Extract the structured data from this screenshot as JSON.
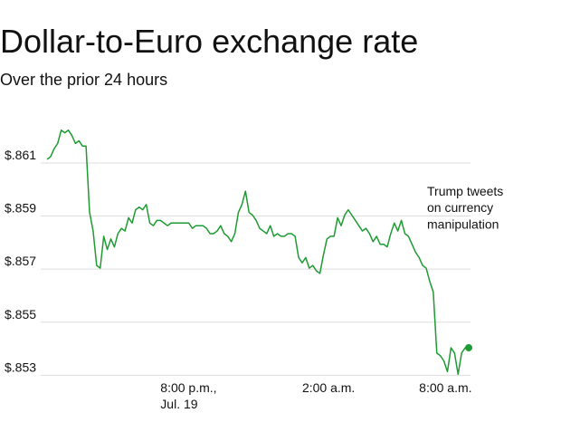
{
  "chart_data": {
    "type": "line",
    "title": "Dollar-to-Euro exchange rate",
    "subtitle": "Over the prior 24 hours",
    "annotation": "Trump tweets\non currency\nmanipulation",
    "series": [
      {
        "name": "Dollar-to-Euro",
        "color": "#1e9b32",
        "values": [
          0.861,
          0.8611,
          0.8614,
          0.8616,
          0.8621,
          0.862,
          0.8621,
          0.8619,
          0.8616,
          0.8617,
          0.8615,
          0.8615,
          0.859,
          0.8583,
          0.857,
          0.8569,
          0.8581,
          0.8576,
          0.858,
          0.8577,
          0.8582,
          0.8584,
          0.8583,
          0.8588,
          0.8586,
          0.8591,
          0.8592,
          0.8591,
          0.8593,
          0.8586,
          0.8585,
          0.8587,
          0.8587,
          0.8586,
          0.8585,
          0.8586,
          0.8586,
          0.8586,
          0.8586,
          0.8586,
          0.8586,
          0.8584,
          0.8585,
          0.8585,
          0.8585,
          0.8584,
          0.8582,
          0.8582,
          0.8583,
          0.8585,
          0.8582,
          0.8581,
          0.8579,
          0.8582,
          0.859,
          0.8593,
          0.8598,
          0.859,
          0.8589,
          0.8587,
          0.8584,
          0.8583,
          0.8582,
          0.8585,
          0.8581,
          0.8582,
          0.8581,
          0.8581,
          0.8582,
          0.8582,
          0.8581,
          0.8573,
          0.8571,
          0.8573,
          0.8569,
          0.857,
          0.8568,
          0.8567,
          0.8574,
          0.858,
          0.8581,
          0.8581,
          0.8588,
          0.8585,
          0.8589,
          0.8591,
          0.8589,
          0.8587,
          0.8585,
          0.8583,
          0.8584,
          0.8582,
          0.8579,
          0.8581,
          0.8578,
          0.8578,
          0.8577,
          0.8582,
          0.8586,
          0.8583,
          0.8587,
          0.8582,
          0.8581,
          0.8578,
          0.8575,
          0.8573,
          0.857,
          0.8569,
          0.8564,
          0.856,
          0.8537,
          0.8536,
          0.8534,
          0.853,
          0.8539,
          0.8537,
          0.8529,
          0.8537,
          0.8539,
          0.8539
        ]
      }
    ],
    "xlim": [
      0,
      119
    ],
    "xticks": [
      {
        "value": 32,
        "label": "8:00 p.m.,\nJul. 19"
      },
      {
        "value": 72,
        "label": "2:00 a.m."
      },
      {
        "value": 105,
        "label": "8:00 a.m."
      }
    ],
    "ylim": [
      0.8525,
      0.8625
    ],
    "yticks": [
      {
        "value": 0.853,
        "label": "$.853"
      },
      {
        "value": 0.855,
        "label": "$.855"
      },
      {
        "value": 0.857,
        "label": "$.857"
      },
      {
        "value": 0.859,
        "label": "$.859"
      },
      {
        "value": 0.861,
        "label": "$.861"
      }
    ],
    "grid": true
  }
}
